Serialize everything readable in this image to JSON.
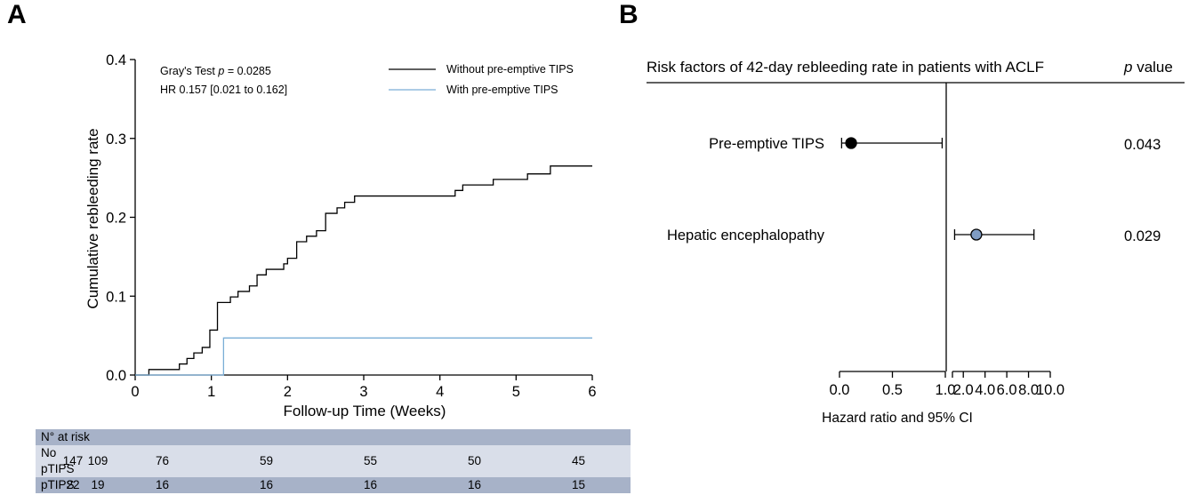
{
  "panels": {
    "a": "A",
    "b": "B"
  },
  "chart_data": [
    {
      "type": "line",
      "step": true,
      "xlabel": "Follow-up Time (Weeks)",
      "ylabel": "Cumulative rebleeding rate",
      "xlim": [
        0,
        6
      ],
      "ylim": [
        0,
        0.4
      ],
      "xticks": [
        "0",
        "1",
        "2",
        "3",
        "4",
        "5",
        "6"
      ],
      "yticks": [
        "0.0",
        "0.1",
        "0.2",
        "0.3",
        "0.4"
      ],
      "annotations": {
        "test": "Gray's Test",
        "test_p_symbol": "p",
        "test_p_value": " = 0.0285",
        "hr": "HR 0.157 [0.021 to 0.162]"
      },
      "legend_position": "top-right",
      "series": [
        {
          "name": "Without pre-emptive TIPS",
          "color": "#000000",
          "points": [
            [
              0,
              0
            ],
            [
              0.18,
              0.007
            ],
            [
              0.58,
              0.014
            ],
            [
              0.68,
              0.021
            ],
            [
              0.77,
              0.028
            ],
            [
              0.88,
              0.035
            ],
            [
              0.98,
              0.057
            ],
            [
              1.08,
              0.092
            ],
            [
              1.25,
              0.099
            ],
            [
              1.35,
              0.106
            ],
            [
              1.5,
              0.113
            ],
            [
              1.6,
              0.127
            ],
            [
              1.72,
              0.134
            ],
            [
              1.95,
              0.141
            ],
            [
              2.0,
              0.148
            ],
            [
              2.12,
              0.169
            ],
            [
              2.25,
              0.176
            ],
            [
              2.38,
              0.183
            ],
            [
              2.5,
              0.205
            ],
            [
              2.65,
              0.212
            ],
            [
              2.75,
              0.219
            ],
            [
              2.88,
              0.227
            ],
            [
              4.2,
              0.234
            ],
            [
              4.3,
              0.241
            ],
            [
              4.7,
              0.248
            ],
            [
              5.15,
              0.255
            ],
            [
              5.45,
              0.265
            ],
            [
              6.0,
              0.265
            ]
          ]
        },
        {
          "name": "With pre-emptive TIPS",
          "color": "#7aaed6",
          "points": [
            [
              0,
              0
            ],
            [
              1.16,
              0
            ],
            [
              1.16,
              0.047
            ],
            [
              6.0,
              0.047
            ]
          ]
        }
      ]
    },
    {
      "type": "forest",
      "title": "Risk factors of 42-day rebleeding rate in patients with ACLF",
      "pvalue_header": "p value",
      "xlabel": "Hazard ratio and 95% CI",
      "xticks_left": [
        "0.0",
        "0.5",
        "1.0"
      ],
      "xticks_right": [
        "2.0",
        "4.0",
        "6.0",
        "8.0",
        "10.0"
      ],
      "axis": "broken at 1.0; linear 0–1 left, linear 1–10 right",
      "rows": [
        {
          "label": "Pre-emptive TIPS",
          "hr": 0.11,
          "ci_low": 0.02,
          "ci_high": 0.97,
          "p": "0.043",
          "color": "#000000"
        },
        {
          "label": "Hepatic encephalopathy",
          "hr": 3.2,
          "ci_low": 1.2,
          "ci_high": 8.5,
          "p": "0.029",
          "color": "#7f9cc3"
        }
      ]
    }
  ],
  "at_risk": {
    "title": "N° at risk",
    "rows": [
      {
        "label": "No pTIPS",
        "values": [
          "147",
          "109",
          "76",
          "59",
          "55",
          "50",
          "45"
        ]
      },
      {
        "label": "pTIPS",
        "values": [
          "22",
          "19",
          "16",
          "16",
          "16",
          "16",
          "15"
        ]
      }
    ]
  }
}
